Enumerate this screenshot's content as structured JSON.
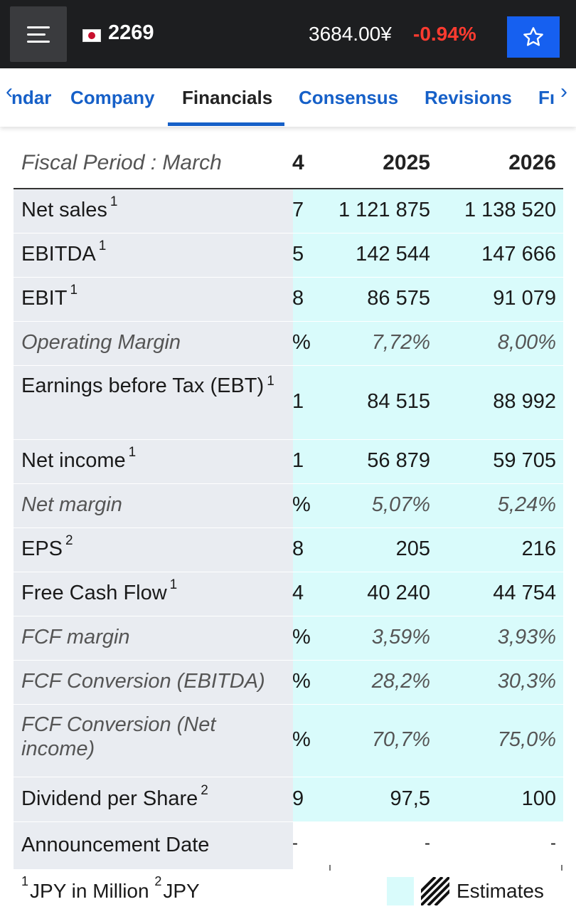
{
  "header": {
    "ticker": "2269",
    "price": "3684.00¥",
    "change": "-0.94%"
  },
  "tabs": [
    {
      "label": "ndar"
    },
    {
      "label": "Company"
    },
    {
      "label": "Financials"
    },
    {
      "label": "Consensus"
    },
    {
      "label": "Revisions"
    },
    {
      "label": "Fı"
    }
  ],
  "table": {
    "period_label": "Fiscal Period : March",
    "columns": [
      "4",
      "2025",
      "2026"
    ],
    "rows": [
      {
        "label": "Net sales",
        "note": "1",
        "values": [
          "7",
          "1 121 875",
          "1 138 520"
        ]
      },
      {
        "label": "EBITDA",
        "note": "1",
        "values": [
          "5",
          "142 544",
          "147 666"
        ]
      },
      {
        "label": "EBIT",
        "note": "1",
        "values": [
          "8",
          "86 575",
          "91 079"
        ]
      },
      {
        "label": "Operating Margin",
        "note": "",
        "values": [
          "%",
          "7,72%",
          "8,00%"
        ]
      },
      {
        "label": "Earnings before Tax (EBT)",
        "note": "1",
        "values": [
          "1",
          "84 515",
          "88 992"
        ]
      },
      {
        "label": "Net income",
        "note": "1",
        "values": [
          "1",
          "56 879",
          "59 705"
        ]
      },
      {
        "label": "Net margin",
        "note": "",
        "values": [
          "%",
          "5,07%",
          "5,24%"
        ]
      },
      {
        "label": "EPS",
        "note": "2",
        "values": [
          "8",
          "205",
          "216"
        ]
      },
      {
        "label": "Free Cash Flow",
        "note": "1",
        "values": [
          "4",
          "40 240",
          "44 754"
        ]
      },
      {
        "label": "FCF margin",
        "note": "",
        "values": [
          "%",
          "3,59%",
          "3,93%"
        ]
      },
      {
        "label": "FCF Conversion (EBITDA)",
        "note": "",
        "values": [
          "%",
          "28,2%",
          "30,3%"
        ]
      },
      {
        "label": "FCF Conversion (Net income)",
        "note": "",
        "values": [
          "%",
          "70,7%",
          "75,0%"
        ]
      },
      {
        "label": "Dividend per Share",
        "note": "2",
        "values": [
          "9",
          "97,5",
          "100"
        ]
      },
      {
        "label": "Announcement Date",
        "note": "",
        "values": [
          "-",
          "-",
          "-"
        ]
      }
    ]
  },
  "footer": {
    "note1_mark": "1",
    "note1_text": "JPY in Million",
    "note2_mark": "2",
    "note2_text": "JPY",
    "legend_label": "Estimates"
  },
  "colors": {
    "topbar": "#1d1e20",
    "accent": "#1660f0",
    "negative": "#ff3b30",
    "estimate_fill": "#d9fbfb",
    "label_fill": "#e9ecf1"
  },
  "icons": [
    "menu-icon",
    "japan-flag-icon",
    "star-icon",
    "chevron-left-icon",
    "chevron-right-icon",
    "hatch-legend-icon"
  ]
}
